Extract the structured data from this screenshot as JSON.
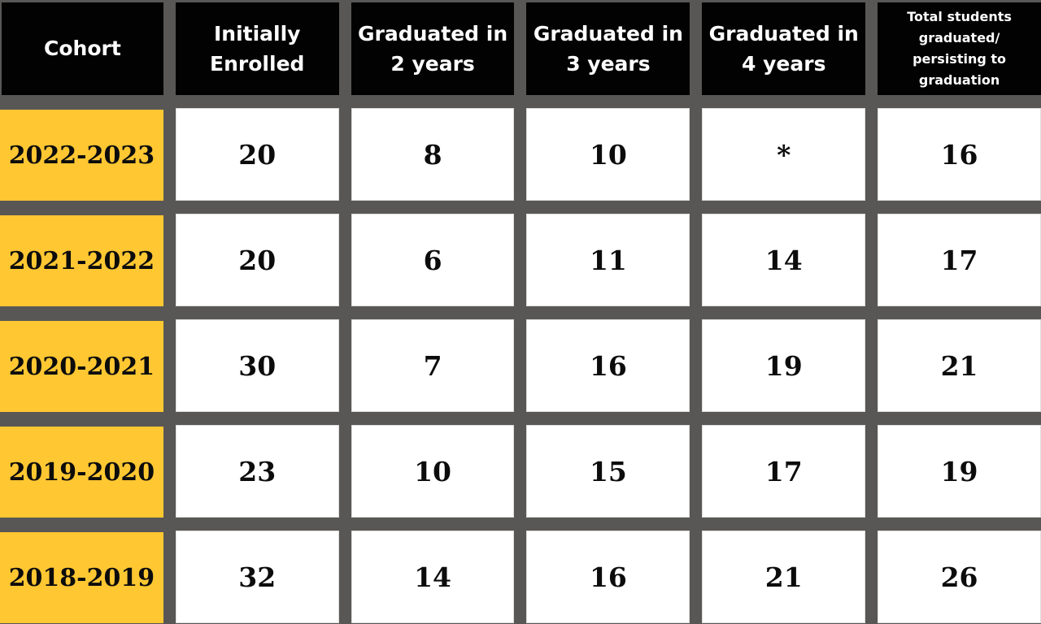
{
  "table": {
    "columns": [
      {
        "id": "cohort",
        "label": "Cohort",
        "lines": [
          "Cohort"
        ]
      },
      {
        "id": "initially-enrolled",
        "label": "Initially Enrolled",
        "lines": [
          "Initially",
          "Enrolled"
        ]
      },
      {
        "id": "graduated-2-years",
        "label": "Graduated in 2 years",
        "lines": [
          "Graduated in",
          "2 years"
        ]
      },
      {
        "id": "graduated-3-years",
        "label": "Graduated in 3 years",
        "lines": [
          "Graduated in",
          "3 years"
        ]
      },
      {
        "id": "graduated-4-years",
        "label": "Graduated in 4 years",
        "lines": [
          "Graduated in",
          "4 years"
        ]
      },
      {
        "id": "total-graduated-persisting",
        "label": "Total students graduated/persisting to graduation",
        "lines": [
          "Total students",
          "graduated/",
          "persisting to",
          "graduation"
        ]
      }
    ],
    "rows": [
      {
        "cohort": "2022-2023",
        "values": [
          "20",
          "8",
          "10",
          "*",
          "16"
        ]
      },
      {
        "cohort": "2021-2022",
        "values": [
          "20",
          "6",
          "11",
          "14",
          "17"
        ]
      },
      {
        "cohort": "2020-2021",
        "values": [
          "30",
          "7",
          "16",
          "19",
          "21"
        ]
      },
      {
        "cohort": "2019-2020",
        "values": [
          "23",
          "10",
          "15",
          "17",
          "19"
        ]
      },
      {
        "cohort": "2018-2019",
        "values": [
          "32",
          "14",
          "16",
          "21",
          "26"
        ]
      }
    ],
    "footnote_marker": "*"
  },
  "chart_data": {
    "type": "table",
    "title": "",
    "columns": [
      "Cohort",
      "Initially Enrolled",
      "Graduated in 2 years",
      "Graduated in 3 years",
      "Graduated in 4 years",
      "Total students graduated/persisting to graduation"
    ],
    "rows": [
      [
        "2022-2023",
        20,
        8,
        10,
        "*",
        16
      ],
      [
        "2021-2022",
        20,
        6,
        11,
        14,
        17
      ],
      [
        "2020-2021",
        30,
        7,
        16,
        19,
        21
      ],
      [
        "2019-2020",
        23,
        10,
        15,
        17,
        19
      ],
      [
        "2018-2019",
        32,
        14,
        16,
        21,
        26
      ]
    ]
  },
  "colors": {
    "background": "#585756",
    "header_bg": "#020202",
    "header_text": "#ffffff",
    "cohort_bg": "#FFC732",
    "cell_bg": "#ffffff",
    "cell_text": "#0c0c0c"
  }
}
